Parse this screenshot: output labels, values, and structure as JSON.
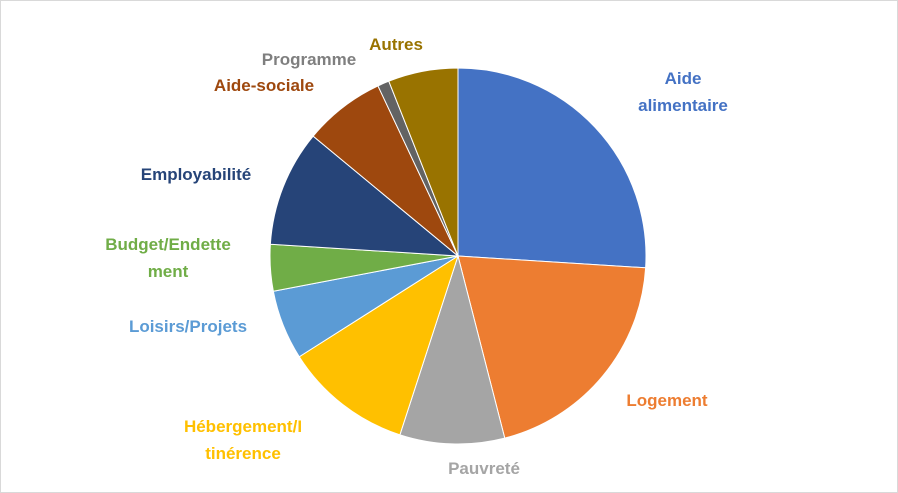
{
  "chart_data": {
    "type": "pie",
    "categories": [
      "Aide\nalimentaire",
      "Logement",
      "Pauvreté",
      "Hébergement/I\ntinérence",
      "Loisirs/Projets",
      "Budget/Endette\nment",
      "Employabilité",
      "Aide-sociale",
      "Programme",
      "Autres"
    ],
    "values": [
      26,
      20,
      9,
      11,
      6,
      4,
      10,
      7,
      1,
      6
    ],
    "colors": [
      "#4472c4",
      "#ed7d31",
      "#a5a5a5",
      "#ffc000",
      "#5b9bd5",
      "#70ad47",
      "#264478",
      "#9e480e",
      "#636363",
      "#997300"
    ],
    "label_colors": [
      "#4472c4",
      "#ed7d31",
      "#a5a5a5",
      "#ffc000",
      "#5b9bd5",
      "#70ad47",
      "#264478",
      "#9e480e",
      "#7f7f7f",
      "#997300"
    ]
  }
}
